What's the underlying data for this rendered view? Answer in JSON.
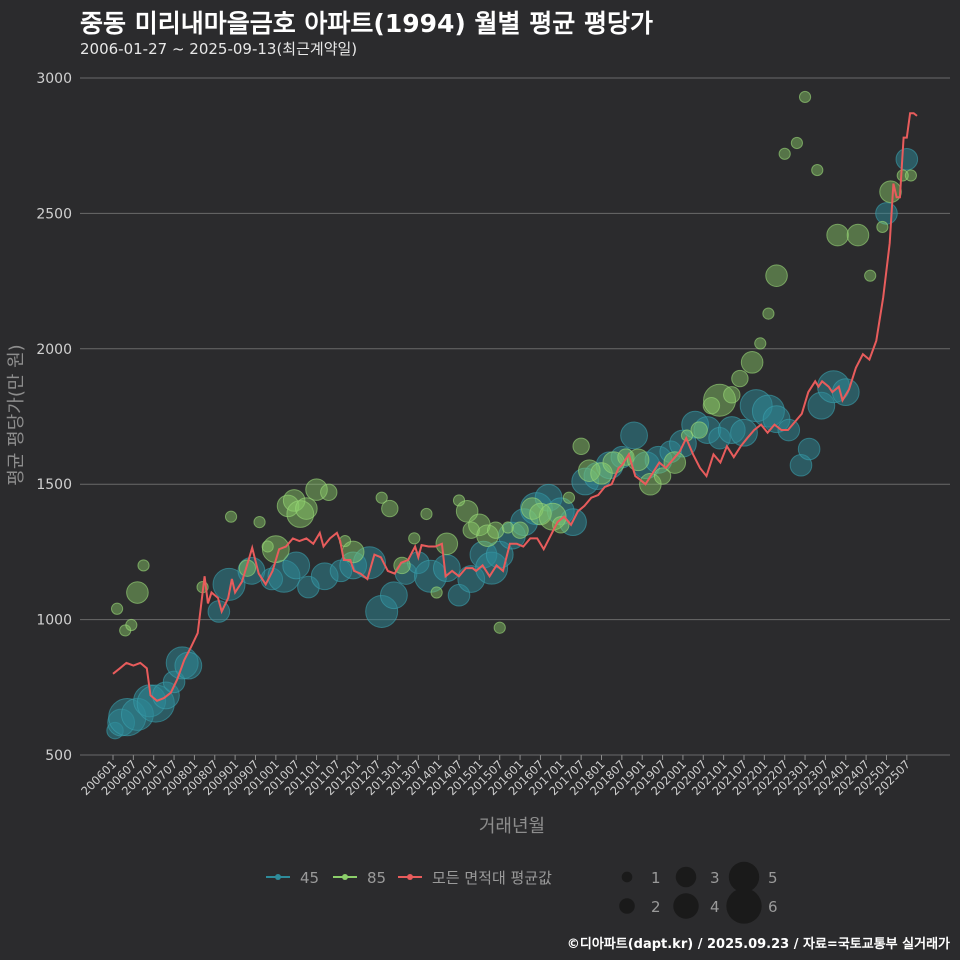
{
  "chart_data": {
    "type": "scatter",
    "title": "중동 미리내마을금호 아파트(1994) 월별 평균 평당가",
    "subtitle": "2006-01-27 ~ 2025-09-13(최근계약일)",
    "xlabel": "거래년월",
    "ylabel": "평균 평당가(만 원)",
    "ylim": [
      500,
      3000
    ],
    "yticks": [
      500,
      1000,
      1500,
      2000,
      2500,
      3000
    ],
    "xlim_months": [
      2006.0,
      2025.75
    ],
    "xticks": [
      "200601",
      "200607",
      "200701",
      "200707",
      "200801",
      "200807",
      "200901",
      "200907",
      "201001",
      "201007",
      "201101",
      "201107",
      "201201",
      "201207",
      "201301",
      "201307",
      "201401",
      "201407",
      "201501",
      "201507",
      "201601",
      "201607",
      "201701",
      "201707",
      "201801",
      "201807",
      "201901",
      "201907",
      "202001",
      "202007",
      "202101",
      "202107",
      "202201",
      "202207",
      "202301",
      "202307",
      "202401",
      "202407",
      "202501",
      "202507"
    ],
    "legend": {
      "position": "bottom",
      "series": [
        {
          "name": "45",
          "color": "#2e8b9a"
        },
        {
          "name": "85",
          "color": "#8ccf6a"
        },
        {
          "name": "모든 면적대 평균값",
          "color": "#e85c5c"
        }
      ],
      "size_labels": [
        "1",
        "2",
        "3",
        "4",
        "5",
        "6"
      ]
    },
    "average_line": [
      [
        2006.0,
        800
      ],
      [
        2006.17,
        820
      ],
      [
        2006.33,
        840
      ],
      [
        2006.5,
        830
      ],
      [
        2006.67,
        840
      ],
      [
        2006.83,
        820
      ],
      [
        2006.92,
        720
      ],
      [
        2007.08,
        700
      ],
      [
        2007.25,
        710
      ],
      [
        2007.42,
        730
      ],
      [
        2007.58,
        780
      ],
      [
        2007.75,
        850
      ],
      [
        2007.92,
        900
      ],
      [
        2008.08,
        950
      ],
      [
        2008.25,
        1160
      ],
      [
        2008.33,
        1060
      ],
      [
        2008.42,
        1100
      ],
      [
        2008.58,
        1080
      ],
      [
        2008.67,
        1030
      ],
      [
        2008.83,
        1080
      ],
      [
        2008.92,
        1150
      ],
      [
        2009.0,
        1100
      ],
      [
        2009.17,
        1140
      ],
      [
        2009.33,
        1220
      ],
      [
        2009.42,
        1265
      ],
      [
        2009.58,
        1170
      ],
      [
        2009.75,
        1130
      ],
      [
        2009.92,
        1180
      ],
      [
        2010.08,
        1260
      ],
      [
        2010.25,
        1270
      ],
      [
        2010.42,
        1300
      ],
      [
        2010.58,
        1290
      ],
      [
        2010.75,
        1300
      ],
      [
        2010.92,
        1280
      ],
      [
        2011.08,
        1320
      ],
      [
        2011.17,
        1270
      ],
      [
        2011.33,
        1300
      ],
      [
        2011.5,
        1320
      ],
      [
        2011.58,
        1290
      ],
      [
        2011.67,
        1220
      ],
      [
        2011.83,
        1220
      ],
      [
        2011.92,
        1180
      ],
      [
        2012.08,
        1170
      ],
      [
        2012.25,
        1150
      ],
      [
        2012.42,
        1240
      ],
      [
        2012.58,
        1230
      ],
      [
        2012.75,
        1180
      ],
      [
        2012.92,
        1170
      ],
      [
        2013.08,
        1210
      ],
      [
        2013.25,
        1220
      ],
      [
        2013.42,
        1270
      ],
      [
        2013.5,
        1230
      ],
      [
        2013.58,
        1275
      ],
      [
        2013.75,
        1270
      ],
      [
        2013.92,
        1270
      ],
      [
        2014.08,
        1280
      ],
      [
        2014.17,
        1160
      ],
      [
        2014.33,
        1180
      ],
      [
        2014.5,
        1160
      ],
      [
        2014.67,
        1190
      ],
      [
        2014.83,
        1190
      ],
      [
        2014.92,
        1180
      ],
      [
        2015.08,
        1200
      ],
      [
        2015.25,
        1160
      ],
      [
        2015.42,
        1200
      ],
      [
        2015.58,
        1180
      ],
      [
        2015.75,
        1280
      ],
      [
        2015.92,
        1280
      ],
      [
        2016.08,
        1270
      ],
      [
        2016.25,
        1300
      ],
      [
        2016.42,
        1300
      ],
      [
        2016.58,
        1260
      ],
      [
        2016.75,
        1310
      ],
      [
        2016.92,
        1360
      ],
      [
        2017.08,
        1380
      ],
      [
        2017.25,
        1350
      ],
      [
        2017.42,
        1400
      ],
      [
        2017.58,
        1420
      ],
      [
        2017.75,
        1450
      ],
      [
        2017.92,
        1460
      ],
      [
        2018.08,
        1490
      ],
      [
        2018.25,
        1500
      ],
      [
        2018.42,
        1560
      ],
      [
        2018.5,
        1570
      ],
      [
        2018.67,
        1610
      ],
      [
        2018.83,
        1530
      ],
      [
        2018.92,
        1520
      ],
      [
        2019.08,
        1500
      ],
      [
        2019.25,
        1540
      ],
      [
        2019.42,
        1580
      ],
      [
        2019.58,
        1560
      ],
      [
        2019.75,
        1590
      ],
      [
        2019.92,
        1620
      ],
      [
        2020.08,
        1670
      ],
      [
        2020.25,
        1610
      ],
      [
        2020.42,
        1560
      ],
      [
        2020.58,
        1530
      ],
      [
        2020.75,
        1610
      ],
      [
        2020.92,
        1580
      ],
      [
        2021.08,
        1640
      ],
      [
        2021.25,
        1600
      ],
      [
        2021.42,
        1640
      ],
      [
        2021.58,
        1670
      ],
      [
        2021.75,
        1700
      ],
      [
        2021.92,
        1720
      ],
      [
        2022.08,
        1690
      ],
      [
        2022.25,
        1720
      ],
      [
        2022.42,
        1700
      ],
      [
        2022.58,
        1700
      ],
      [
        2022.75,
        1730
      ],
      [
        2022.92,
        1760
      ],
      [
        2023.08,
        1840
      ],
      [
        2023.25,
        1880
      ],
      [
        2023.33,
        1860
      ],
      [
        2023.42,
        1880
      ],
      [
        2023.58,
        1860
      ],
      [
        2023.67,
        1840
      ],
      [
        2023.83,
        1860
      ],
      [
        2023.92,
        1810
      ],
      [
        2024.08,
        1850
      ],
      [
        2024.25,
        1930
      ],
      [
        2024.42,
        1980
      ],
      [
        2024.58,
        1960
      ],
      [
        2024.75,
        2030
      ],
      [
        2024.92,
        2190
      ],
      [
        2025.08,
        2390
      ],
      [
        2025.17,
        2610
      ],
      [
        2025.25,
        2560
      ],
      [
        2025.33,
        2560
      ],
      [
        2025.42,
        2780
      ],
      [
        2025.5,
        2780
      ],
      [
        2025.58,
        2870
      ],
      [
        2025.67,
        2870
      ],
      [
        2025.75,
        2860
      ]
    ],
    "scatter_45": [
      [
        2006.05,
        590,
        2
      ],
      [
        2006.2,
        620,
        4
      ],
      [
        2006.35,
        640,
        6
      ],
      [
        2006.6,
        650,
        5
      ],
      [
        2006.9,
        700,
        5
      ],
      [
        2007.05,
        690,
        6
      ],
      [
        2007.3,
        720,
        4
      ],
      [
        2007.5,
        770,
        3
      ],
      [
        2007.7,
        840,
        5
      ],
      [
        2007.85,
        830,
        4
      ],
      [
        2008.6,
        1030,
        3
      ],
      [
        2008.85,
        1130,
        5
      ],
      [
        2009.4,
        1180,
        4
      ],
      [
        2009.9,
        1150,
        3
      ],
      [
        2010.2,
        1160,
        5
      ],
      [
        2010.5,
        1200,
        4
      ],
      [
        2010.8,
        1120,
        3
      ],
      [
        2011.2,
        1160,
        4
      ],
      [
        2011.6,
        1180,
        3
      ],
      [
        2011.9,
        1200,
        4
      ],
      [
        2012.3,
        1210,
        5
      ],
      [
        2012.6,
        1030,
        5
      ],
      [
        2012.9,
        1090,
        4
      ],
      [
        2013.2,
        1170,
        3
      ],
      [
        2013.5,
        1210,
        3
      ],
      [
        2013.8,
        1160,
        5
      ],
      [
        2014.2,
        1190,
        4
      ],
      [
        2014.5,
        1090,
        3
      ],
      [
        2014.8,
        1150,
        4
      ],
      [
        2015.1,
        1240,
        4
      ],
      [
        2015.3,
        1190,
        5
      ],
      [
        2015.5,
        1240,
        4
      ],
      [
        2015.8,
        1310,
        4
      ],
      [
        2016.1,
        1360,
        4
      ],
      [
        2016.4,
        1410,
        5
      ],
      [
        2016.7,
        1450,
        4
      ],
      [
        2017.0,
        1400,
        4
      ],
      [
        2017.3,
        1360,
        4
      ],
      [
        2017.6,
        1510,
        4
      ],
      [
        2017.9,
        1530,
        4
      ],
      [
        2018.2,
        1570,
        4
      ],
      [
        2018.5,
        1600,
        3
      ],
      [
        2018.8,
        1680,
        4
      ],
      [
        2019.1,
        1570,
        4
      ],
      [
        2019.4,
        1590,
        4
      ],
      [
        2019.7,
        1620,
        3
      ],
      [
        2020.0,
        1650,
        4
      ],
      [
        2020.3,
        1720,
        4
      ],
      [
        2020.6,
        1700,
        4
      ],
      [
        2020.9,
        1670,
        3
      ],
      [
        2021.2,
        1700,
        4
      ],
      [
        2021.5,
        1690,
        4
      ],
      [
        2021.8,
        1790,
        5
      ],
      [
        2022.1,
        1770,
        5
      ],
      [
        2022.3,
        1740,
        4
      ],
      [
        2022.6,
        1700,
        3
      ],
      [
        2022.9,
        1570,
        3
      ],
      [
        2023.1,
        1630,
        3
      ],
      [
        2023.4,
        1790,
        4
      ],
      [
        2023.7,
        1860,
        5
      ],
      [
        2024.0,
        1840,
        4
      ],
      [
        2025.0,
        2500,
        3
      ],
      [
        2025.5,
        2700,
        3
      ]
    ],
    "scatter_85": [
      [
        2006.1,
        1040,
        1
      ],
      [
        2006.3,
        960,
        1
      ],
      [
        2006.45,
        980,
        1
      ],
      [
        2006.6,
        1100,
        3
      ],
      [
        2006.75,
        1200,
        1
      ],
      [
        2008.2,
        1120,
        1
      ],
      [
        2008.9,
        1380,
        1
      ],
      [
        2009.3,
        1190,
        2
      ],
      [
        2009.6,
        1360,
        1
      ],
      [
        2009.8,
        1270,
        1
      ],
      [
        2010.0,
        1260,
        4
      ],
      [
        2010.3,
        1420,
        3
      ],
      [
        2010.45,
        1440,
        3
      ],
      [
        2010.6,
        1390,
        4
      ],
      [
        2010.75,
        1410,
        3
      ],
      [
        2011.0,
        1480,
        3
      ],
      [
        2011.3,
        1470,
        2
      ],
      [
        2011.7,
        1290,
        1
      ],
      [
        2011.9,
        1250,
        3
      ],
      [
        2012.6,
        1450,
        1
      ],
      [
        2012.8,
        1410,
        2
      ],
      [
        2013.1,
        1200,
        2
      ],
      [
        2013.4,
        1300,
        1
      ],
      [
        2013.7,
        1390,
        1
      ],
      [
        2013.95,
        1100,
        1
      ],
      [
        2014.2,
        1280,
        3
      ],
      [
        2014.5,
        1440,
        1
      ],
      [
        2014.7,
        1400,
        3
      ],
      [
        2014.8,
        1330,
        2
      ],
      [
        2015.0,
        1350,
        3
      ],
      [
        2015.2,
        1310,
        3
      ],
      [
        2015.4,
        1330,
        2
      ],
      [
        2015.5,
        970,
        1
      ],
      [
        2015.7,
        1340,
        1
      ],
      [
        2016.0,
        1330,
        2
      ],
      [
        2016.3,
        1410,
        3
      ],
      [
        2016.5,
        1390,
        3
      ],
      [
        2016.8,
        1380,
        4
      ],
      [
        2017.0,
        1350,
        2
      ],
      [
        2017.2,
        1450,
        1
      ],
      [
        2017.5,
        1640,
        2
      ],
      [
        2017.7,
        1550,
        3
      ],
      [
        2018.0,
        1540,
        3
      ],
      [
        2018.3,
        1580,
        3
      ],
      [
        2018.6,
        1600,
        2
      ],
      [
        2018.9,
        1590,
        3
      ],
      [
        2019.2,
        1500,
        3
      ],
      [
        2019.5,
        1530,
        2
      ],
      [
        2019.8,
        1580,
        3
      ],
      [
        2020.1,
        1680,
        1
      ],
      [
        2020.4,
        1700,
        2
      ],
      [
        2020.7,
        1790,
        2
      ],
      [
        2020.9,
        1810,
        5
      ],
      [
        2021.2,
        1830,
        2
      ],
      [
        2021.4,
        1890,
        2
      ],
      [
        2021.7,
        1950,
        3
      ],
      [
        2021.9,
        2020,
        1
      ],
      [
        2022.1,
        2130,
        1
      ],
      [
        2022.3,
        2270,
        3
      ],
      [
        2022.5,
        2720,
        1
      ],
      [
        2022.8,
        2760,
        1
      ],
      [
        2023.0,
        2930,
        1
      ],
      [
        2023.3,
        2660,
        1
      ],
      [
        2023.8,
        2420,
        3
      ],
      [
        2024.3,
        2420,
        3
      ],
      [
        2024.6,
        2270,
        1
      ],
      [
        2024.9,
        2450,
        1
      ],
      [
        2025.1,
        2580,
        3
      ],
      [
        2025.4,
        2640,
        1
      ],
      [
        2025.6,
        2640,
        1
      ]
    ]
  },
  "credit": "©디아파트(dapt.kr) / 2025.09.23 / 자료=국토교통부 실거래가"
}
